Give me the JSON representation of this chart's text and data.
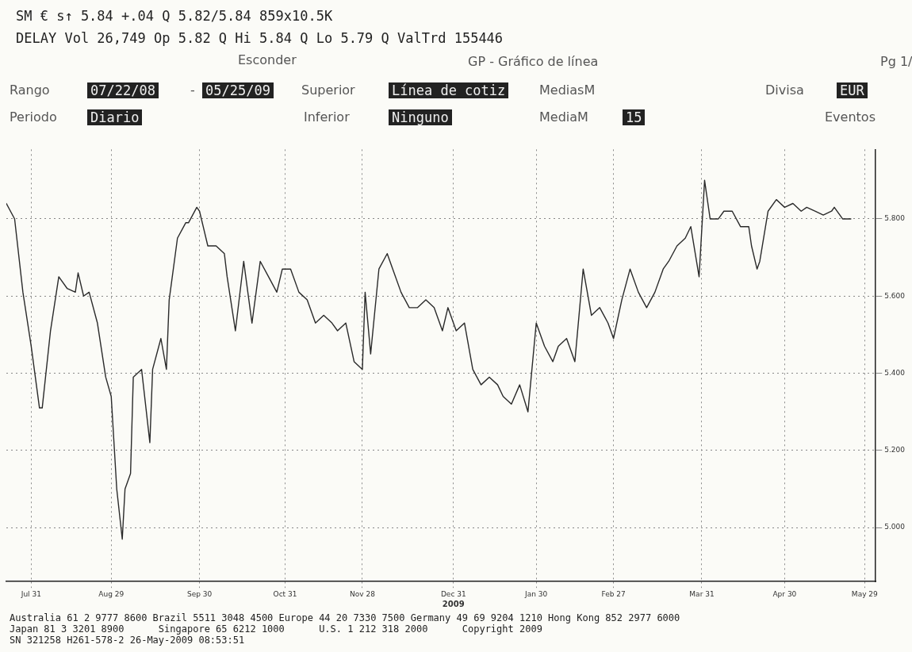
{
  "chart_data": {
    "type": "line",
    "title": "GP - Gráfico de línea",
    "x": [
      "2008-07-22",
      "2008-07-25",
      "2008-07-28",
      "2008-07-31",
      "2008-08-03",
      "2008-08-04",
      "2008-08-07",
      "2008-08-10",
      "2008-08-13",
      "2008-08-16",
      "2008-08-17",
      "2008-08-19",
      "2008-08-21",
      "2008-08-24",
      "2008-08-27",
      "2008-08-29",
      "2008-08-31",
      "2008-09-02",
      "2008-09-03",
      "2008-09-05",
      "2008-09-06",
      "2008-09-09",
      "2008-09-12",
      "2008-09-13",
      "2008-09-16",
      "2008-09-18",
      "2008-09-19",
      "2008-09-22",
      "2008-09-25",
      "2008-09-26",
      "2008-09-29",
      "2008-09-30",
      "2008-10-03",
      "2008-10-06",
      "2008-10-09",
      "2008-10-10",
      "2008-10-13",
      "2008-10-16",
      "2008-10-19",
      "2008-10-22",
      "2008-10-25",
      "2008-10-28",
      "2008-10-30",
      "2008-11-02",
      "2008-11-05",
      "2008-11-08",
      "2008-11-11",
      "2008-11-14",
      "2008-11-17",
      "2008-11-19",
      "2008-11-22",
      "2008-11-25",
      "2008-11-28",
      "2008-11-29",
      "2008-12-01",
      "2008-12-04",
      "2008-12-07",
      "2008-12-09",
      "2008-12-12",
      "2008-12-15",
      "2008-12-18",
      "2008-12-21",
      "2008-12-24",
      "2008-12-27",
      "2008-12-29",
      "2009-01-01",
      "2009-01-04",
      "2009-01-07",
      "2009-01-10",
      "2009-01-13",
      "2009-01-16",
      "2009-01-18",
      "2009-01-21",
      "2009-01-24",
      "2009-01-27",
      "2009-01-30",
      "2009-02-02",
      "2009-02-05",
      "2009-02-07",
      "2009-02-10",
      "2009-02-13",
      "2009-02-16",
      "2009-02-19",
      "2009-02-22",
      "2009-02-25",
      "2009-02-27",
      "2009-03-02",
      "2009-03-05",
      "2009-03-08",
      "2009-03-11",
      "2009-03-14",
      "2009-03-17",
      "2009-03-19",
      "2009-03-22",
      "2009-03-25",
      "2009-03-27",
      "2009-03-30",
      "2009-04-01",
      "2009-04-03",
      "2009-04-06",
      "2009-04-08",
      "2009-04-11",
      "2009-04-14",
      "2009-04-17",
      "2009-04-18",
      "2009-04-20",
      "2009-04-21",
      "2009-04-24",
      "2009-04-27",
      "2009-04-30",
      "2009-05-03",
      "2009-05-06",
      "2009-05-08",
      "2009-05-11",
      "2009-05-14",
      "2009-05-17",
      "2009-05-18",
      "2009-05-21",
      "2009-05-24"
    ],
    "series": [
      {
        "color": "#2a2a2a",
        "values": [
          5.84,
          5.8,
          5.61,
          5.47,
          5.31,
          5.31,
          5.51,
          5.65,
          5.62,
          5.61,
          5.66,
          5.6,
          5.61,
          5.53,
          5.39,
          5.34,
          5.1,
          4.97,
          5.1,
          5.14,
          5.39,
          5.41,
          5.22,
          5.41,
          5.49,
          5.41,
          5.59,
          5.75,
          5.79,
          5.79,
          5.83,
          5.82,
          5.73,
          5.73,
          5.71,
          5.65,
          5.51,
          5.69,
          5.53,
          5.69,
          5.65,
          5.61,
          5.67,
          5.67,
          5.61,
          5.59,
          5.53,
          5.55,
          5.53,
          5.51,
          5.53,
          5.43,
          5.41,
          5.61,
          5.45,
          5.67,
          5.71,
          5.67,
          5.61,
          5.57,
          5.57,
          5.59,
          5.57,
          5.51,
          5.57,
          5.51,
          5.53,
          5.41,
          5.37,
          5.39,
          5.37,
          5.34,
          5.32,
          5.37,
          5.3,
          5.53,
          5.47,
          5.43,
          5.47,
          5.49,
          5.43,
          5.67,
          5.55,
          5.57,
          5.53,
          5.49,
          5.59,
          5.67,
          5.61,
          5.57,
          5.61,
          5.67,
          5.69,
          5.73,
          5.75,
          5.78,
          5.65,
          5.9,
          5.8,
          5.8,
          5.82,
          5.82,
          5.78,
          5.78,
          5.73,
          5.67,
          5.69,
          5.82,
          5.85,
          5.83,
          5.84,
          5.82,
          5.83,
          5.82,
          5.81,
          5.82,
          5.83,
          5.8,
          5.8
        ]
      }
    ],
    "xlim": [
      "2008-07-22",
      "2009-06-02"
    ],
    "xticks": [
      {
        "value": "2008-07-31",
        "label": "Jul 31"
      },
      {
        "value": "2008-08-29",
        "label": "Aug 29"
      },
      {
        "value": "2008-09-30",
        "label": "Sep 30"
      },
      {
        "value": "2008-10-31",
        "label": "Oct 31"
      },
      {
        "value": "2008-11-28",
        "label": "Nov 28"
      },
      {
        "value": "2008-12-31",
        "label": "Dec 31"
      },
      {
        "value": "2009-01-30",
        "label": "Jan 30"
      },
      {
        "value": "2009-02-27",
        "label": "Feb 27"
      },
      {
        "value": "2009-03-31",
        "label": "Mar 31"
      },
      {
        "value": "2009-04-30",
        "label": "Apr 30"
      },
      {
        "value": "2009-05-29",
        "label": "May 29"
      }
    ],
    "ylim": [
      4.86,
      5.98
    ],
    "yticks": [
      {
        "value": 5.0,
        "label": "5.000"
      },
      {
        "value": 5.2,
        "label": "5.200"
      },
      {
        "value": 5.4,
        "label": "5.400"
      },
      {
        "value": 5.6,
        "label": "5.600"
      },
      {
        "value": 5.8,
        "label": "5.800"
      }
    ],
    "grid": true,
    "legend": false,
    "marker": "none",
    "line_style": "solid",
    "annotations": [
      "2009",
      "SM €  s↑ 5.84 +.04 Q  5.82/5.84  859x10.5K",
      "DELAY  Vol 26,749 Op 5.82 Q  Hi 5.84 Q  Lo 5.79 Q  ValTrd 155446",
      "Esconder",
      "Pg 1/",
      "Rango",
      "07/22/08",
      "-",
      "05/25/09",
      "Superior",
      "Línea de cotiz",
      "MediasM",
      "Divisa",
      "EUR",
      "Periodo",
      "Diario",
      "Inferior",
      "Ninguno",
      "MediaM",
      "15",
      "Eventos",
      "Australia 61 2 9777 8600 Brazil 5511 3048 4500 Europe 44 20 7330 7500 Germany 49 69 9204 1210 Hong Kong 852 2977 6000",
      "Japan 81 3 3201 8900      Singapore 65 6212 1000      U.S. 1 212 318 2000      Copyright 2009",
      "SN 321258 H261-578-2 26-May-2009 08:53:51"
    ]
  }
}
